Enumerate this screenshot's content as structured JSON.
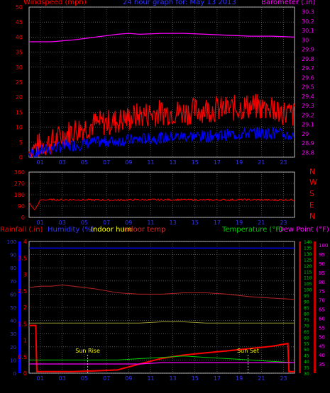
{
  "header": {
    "windspeed_label": "Windspeed (mph)",
    "title": "24 hour graph for:  May 13 2013",
    "barometer_label": "Barometer (.in)"
  },
  "colors": {
    "red": "#ff0000",
    "blue": "#0000ff",
    "magenta": "#ff00ff",
    "yellow": "#ffff00",
    "green": "#00cc00",
    "darkred": "#aa0000",
    "dewpoint": "#ff8800",
    "grid": "#808080",
    "gray": "#c0c0c0",
    "title_blue": "#3333ff"
  },
  "wind_dir": {
    "labels": [
      "N",
      "W",
      "S",
      "E",
      "N"
    ]
  },
  "bottom_header": {
    "rainfall": "Rainfall (.in)",
    "humidity": "Humidity (%)",
    "indoor_hum": "Indoor hum",
    "indoor_temp": "Indoor temp",
    "temperature": "Temperature (°F)",
    "dew_point": "Dew Point (°F)"
  },
  "annotations": {
    "sun_rise": "Sun Rise",
    "sun_set": "Sun Set"
  },
  "chart_data": [
    {
      "type": "line",
      "title": "24 hour graph for:  May 13 2013",
      "x_ticks": [
        "01",
        "03",
        "05",
        "07",
        "09",
        "11",
        "13",
        "15",
        "17",
        "19",
        "21",
        "23"
      ],
      "x_range": [
        0,
        24
      ],
      "left_axis": {
        "label": "Windspeed (mph)",
        "ticks": [
          0,
          5,
          10,
          15,
          20,
          25,
          30,
          35,
          40,
          45,
          50
        ],
        "range": [
          0,
          50
        ]
      },
      "right_axis": {
        "label": "Barometer (.in)",
        "ticks": [
          28.8,
          28.9,
          29,
          29.1,
          29.2,
          29.3,
          29.4,
          29.5,
          29.6,
          29.7,
          29.8,
          29.9,
          30,
          30.1,
          30.2,
          30.3
        ],
        "range": [
          28.75,
          30.35
        ]
      },
      "series": [
        {
          "axis": "right",
          "x": [
            0,
            2,
            4,
            6,
            8,
            9,
            10,
            12,
            14,
            16,
            18,
            20,
            22,
            24
          ],
          "values": [
            29.98,
            29.98,
            30.0,
            30.03,
            30.06,
            30.07,
            30.06,
            30.07,
            30.07,
            30.06,
            30.05,
            30.04,
            30.04,
            30.03
          ]
        },
        {
          "axis": "left",
          "x": [
            0,
            1,
            2,
            3,
            4,
            6,
            8,
            10,
            12,
            14,
            16,
            18,
            20,
            22,
            24
          ],
          "values": [
            2,
            4,
            5,
            7,
            9,
            11,
            12,
            14,
            15,
            15,
            16,
            16,
            17,
            16,
            14
          ]
        },
        {
          "axis": "left",
          "x": [
            0,
            1,
            2,
            3,
            4,
            6,
            8,
            10,
            12,
            14,
            16,
            18,
            20,
            22,
            24
          ],
          "values": [
            1,
            2,
            3,
            3.5,
            4,
            5,
            5.5,
            6,
            6.5,
            7,
            7,
            7.5,
            8,
            8,
            7
          ]
        }
      ]
    },
    {
      "type": "line",
      "x_ticks": [
        "01",
        "03",
        "05",
        "07",
        "09",
        "11",
        "13",
        "15",
        "17",
        "19",
        "21",
        "23"
      ],
      "x_range": [
        0,
        24
      ],
      "left_axis": {
        "ticks": [
          0,
          90,
          180,
          270,
          360
        ],
        "range": [
          0,
          360
        ]
      },
      "right_axis": {
        "ticks": [
          "N",
          "W",
          "S",
          "E",
          "N"
        ]
      },
      "series": [
        {
          "x": [
            0,
            0.3,
            0.5,
            0.8,
            1,
            2,
            4,
            6,
            8,
            10,
            12,
            14,
            16,
            18,
            20,
            22,
            24
          ],
          "values": [
            120,
            80,
            60,
            100,
            140,
            140,
            140,
            138,
            138,
            140,
            140,
            140,
            138,
            140,
            140,
            138,
            140
          ]
        }
      ]
    },
    {
      "type": "line",
      "x_ticks": [
        "01",
        "03",
        "05",
        "07",
        "09",
        "11",
        "13",
        "15",
        "17",
        "19",
        "21",
        "23"
      ],
      "x_range": [
        0,
        24
      ],
      "axes": {
        "rainfall": {
          "label": "Rainfall (.in)",
          "ticks": [
            0,
            0.5,
            1,
            1.5,
            2,
            2.5,
            3,
            3.5,
            4
          ],
          "range": [
            0,
            4
          ]
        },
        "humidity": {
          "label": "Humidity (%)",
          "ticks": [
            0,
            10,
            20,
            30,
            40,
            50,
            60,
            70,
            80,
            90,
            100
          ],
          "range": [
            0,
            100
          ]
        },
        "temperature": {
          "label": "Temperature (°F)",
          "ticks": [
            30,
            35,
            40,
            45,
            50,
            55,
            60,
            65,
            70,
            75,
            80,
            85,
            90,
            95,
            100,
            105,
            110,
            115,
            120,
            125,
            130,
            135,
            140
          ],
          "range": [
            30,
            140
          ]
        },
        "dewpoint": {
          "label": "Dew Point (°F)",
          "ticks": [
            35,
            40,
            45,
            50,
            55,
            60,
            65,
            70,
            75,
            80,
            85,
            90,
            95,
            100
          ]
        }
      },
      "series": [
        {
          "axis": "humidity",
          "x": [
            0,
            4,
            8,
            12,
            16,
            20,
            24
          ],
          "values": [
            95,
            95,
            95,
            95,
            95,
            95,
            95
          ]
        },
        {
          "axis": "humidity",
          "x": [
            0,
            1,
            2,
            3,
            4,
            6,
            8,
            10,
            12,
            14,
            16,
            18,
            20,
            22,
            24
          ],
          "values": [
            65,
            66,
            66,
            67,
            66,
            64,
            61,
            60,
            60,
            61,
            61,
            60,
            58,
            57,
            56
          ]
        },
        {
          "axis": "humidity",
          "x": [
            0,
            4,
            8,
            10,
            12,
            14,
            16,
            18,
            20,
            22,
            24
          ],
          "values": [
            38,
            38,
            38,
            38,
            39,
            39,
            38,
            38,
            38,
            38,
            38
          ]
        },
        {
          "axis": "rainfall",
          "x": [
            0,
            0.6,
            0.7,
            2,
            4,
            6,
            8,
            10,
            12,
            14,
            16,
            18,
            20,
            22,
            23.4,
            23.5,
            24
          ],
          "values": [
            1.45,
            1.45,
            0.05,
            0.05,
            0.05,
            0.07,
            0.1,
            0.28,
            0.45,
            0.55,
            0.62,
            0.68,
            0.75,
            0.82,
            0.9,
            0.05,
            0.05
          ]
        },
        {
          "axis": "humidity",
          "x": [
            0,
            2,
            4,
            6,
            8,
            10,
            12,
            14,
            16,
            18,
            20,
            22,
            24
          ],
          "values": [
            10,
            10,
            10,
            10,
            10,
            11,
            12,
            13,
            12,
            11,
            10,
            9,
            8
          ]
        },
        {
          "axis": "humidity",
          "x": [
            0,
            2,
            4,
            6,
            8,
            10,
            12,
            14,
            16,
            18,
            20,
            22,
            24
          ],
          "values": [
            7,
            7,
            7,
            7,
            7,
            7,
            8,
            8,
            8,
            8,
            8,
            8,
            8
          ]
        }
      ],
      "annotations": [
        {
          "x": 5.3,
          "text": "Sun Rise"
        },
        {
          "x": 19.8,
          "text": "Sun Set"
        }
      ]
    }
  ]
}
